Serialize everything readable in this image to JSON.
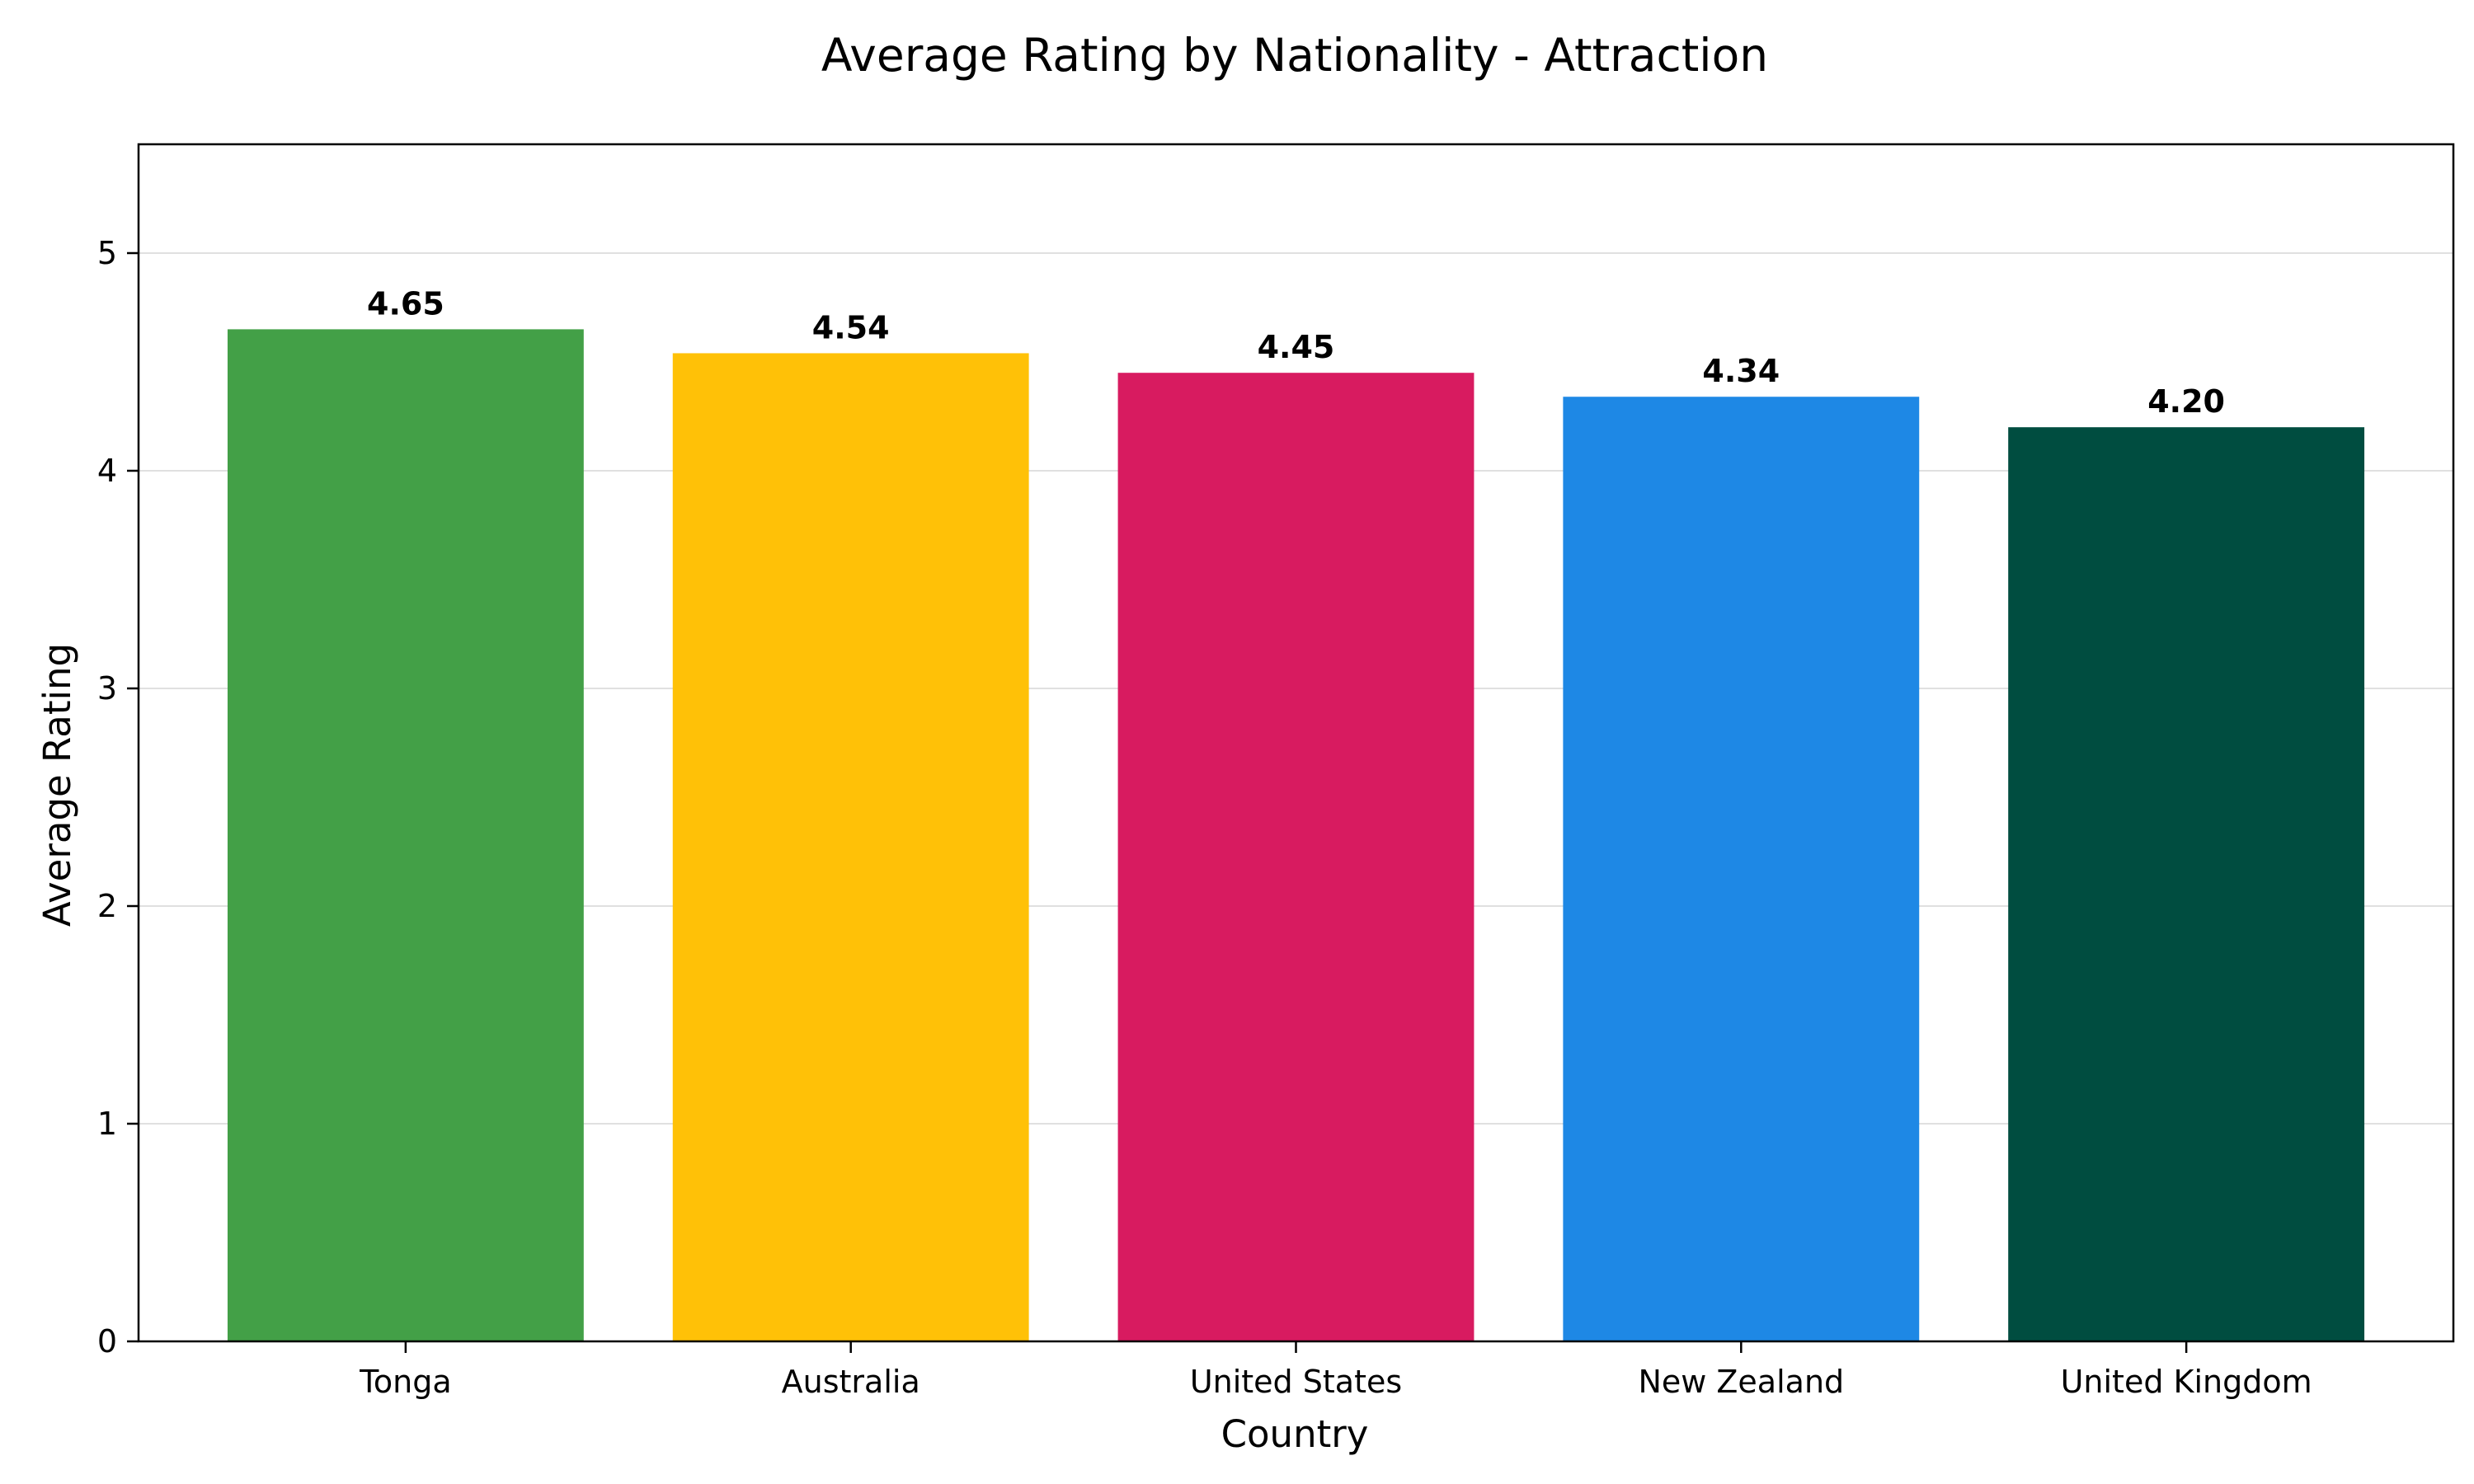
{
  "chart_data": {
    "type": "bar",
    "title": "Average Rating by Nationality - Attraction",
    "xlabel": "Country",
    "ylabel": "Average Rating",
    "categories": [
      "Tonga",
      "Australia",
      "United States",
      "New Zealand",
      "United Kingdom"
    ],
    "values": [
      4.65,
      4.54,
      4.45,
      4.34,
      4.2
    ],
    "data_labels": [
      "4.65",
      "4.54",
      "4.45",
      "4.34",
      "4.20"
    ],
    "colors": [
      "#43a047",
      "#ffc107",
      "#d81b60",
      "#1e88e5",
      "#004d40"
    ],
    "ylim": [
      0,
      5.5
    ],
    "yticks": [
      0,
      1,
      2,
      3,
      4,
      5
    ],
    "grid": "horizontal",
    "legend": "none"
  }
}
